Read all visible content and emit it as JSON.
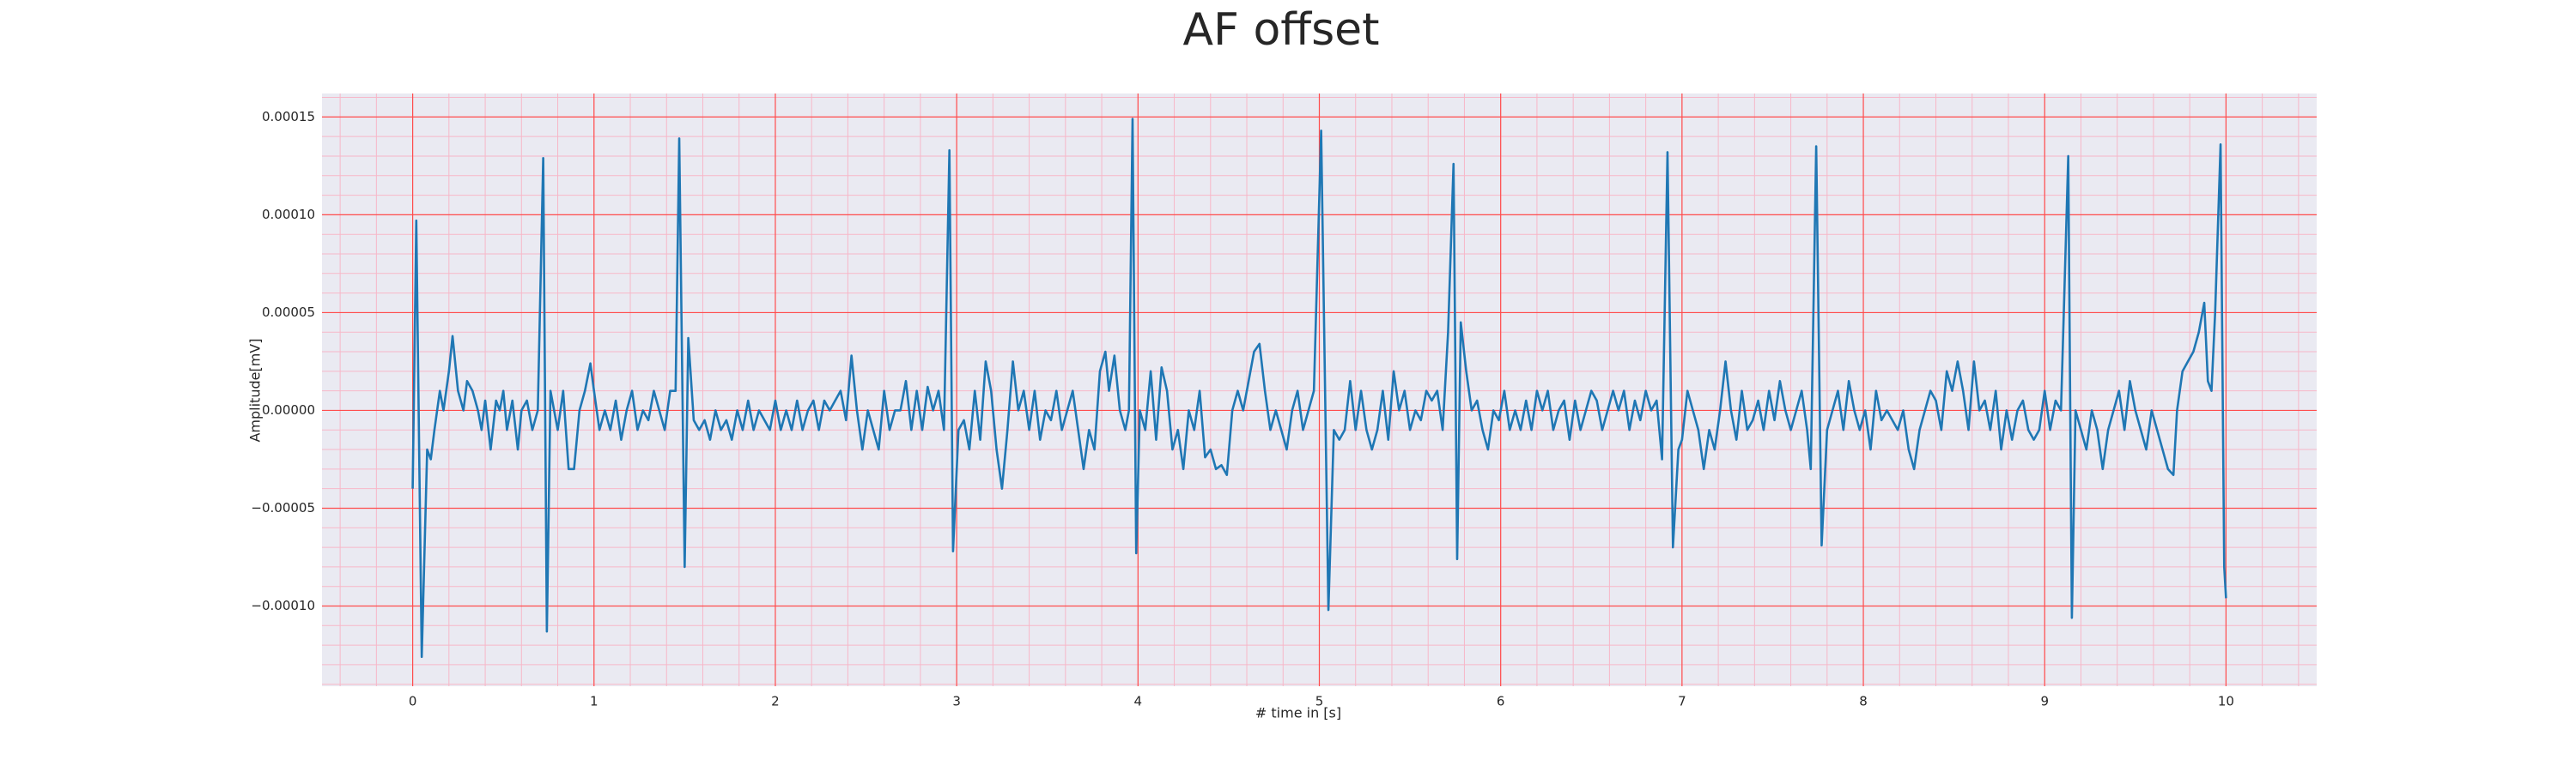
{
  "chart_data": {
    "type": "line",
    "title": "AF offset",
    "xlabel": "# time in [s]",
    "ylabel": "Amplitude[mV]",
    "xlim": [
      -0.5,
      10.5
    ],
    "ylim": [
      -0.000141,
      0.000162
    ],
    "xticks": [
      0,
      1,
      2,
      3,
      4,
      5,
      6,
      7,
      8,
      9,
      10
    ],
    "yticks": [
      {
        "value": -0.0001,
        "label": "−0.00010"
      },
      {
        "value": -5e-05,
        "label": "−0.00005"
      },
      {
        "value": 0,
        "label": "0.00000"
      },
      {
        "value": 5e-05,
        "label": "0.00005"
      },
      {
        "value": 0.0001,
        "label": "0.00010"
      },
      {
        "value": 0.00015,
        "label": "0.00015"
      }
    ],
    "grid": true,
    "minor_grid": true,
    "grid_color": "#ff4d4d",
    "minor_grid_color": "#f7b7c8",
    "background": "#eaeaf2",
    "color": "#1f77b4",
    "x": [
      0.0,
      0.02,
      0.05,
      0.08,
      0.1,
      0.12,
      0.15,
      0.17,
      0.2,
      0.22,
      0.25,
      0.28,
      0.3,
      0.33,
      0.36,
      0.38,
      0.4,
      0.43,
      0.46,
      0.48,
      0.5,
      0.52,
      0.55,
      0.58,
      0.6,
      0.63,
      0.66,
      0.69,
      0.72,
      0.74,
      0.76,
      0.78,
      0.8,
      0.83,
      0.86,
      0.89,
      0.92,
      0.95,
      0.98,
      1.0,
      1.03,
      1.06,
      1.09,
      1.12,
      1.15,
      1.18,
      1.21,
      1.24,
      1.27,
      1.3,
      1.33,
      1.36,
      1.39,
      1.42,
      1.45,
      1.47,
      1.5,
      1.52,
      1.55,
      1.58,
      1.61,
      1.64,
      1.67,
      1.7,
      1.73,
      1.76,
      1.79,
      1.82,
      1.85,
      1.88,
      1.91,
      1.94,
      1.97,
      2.0,
      2.03,
      2.06,
      2.09,
      2.12,
      2.15,
      2.18,
      2.21,
      2.24,
      2.27,
      2.3,
      2.33,
      2.36,
      2.39,
      2.42,
      2.45,
      2.48,
      2.51,
      2.54,
      2.57,
      2.6,
      2.63,
      2.66,
      2.69,
      2.72,
      2.75,
      2.78,
      2.81,
      2.84,
      2.87,
      2.9,
      2.93,
      2.96,
      2.98,
      3.01,
      3.04,
      3.07,
      3.1,
      3.13,
      3.16,
      3.19,
      3.22,
      3.25,
      3.28,
      3.31,
      3.34,
      3.37,
      3.4,
      3.43,
      3.46,
      3.49,
      3.52,
      3.55,
      3.58,
      3.61,
      3.64,
      3.67,
      3.7,
      3.73,
      3.76,
      3.79,
      3.82,
      3.84,
      3.87,
      3.9,
      3.93,
      3.95,
      3.97,
      3.99,
      4.01,
      4.04,
      4.07,
      4.1,
      4.13,
      4.16,
      4.19,
      4.22,
      4.25,
      4.28,
      4.31,
      4.34,
      4.37,
      4.4,
      4.43,
      4.46,
      4.49,
      4.52,
      4.55,
      4.58,
      4.61,
      4.64,
      4.67,
      4.7,
      4.73,
      4.76,
      4.79,
      4.82,
      4.85,
      4.88,
      4.91,
      4.94,
      4.97,
      5.01,
      5.05,
      5.08,
      5.11,
      5.14,
      5.17,
      5.2,
      5.23,
      5.26,
      5.29,
      5.32,
      5.35,
      5.38,
      5.41,
      5.44,
      5.47,
      5.5,
      5.53,
      5.56,
      5.59,
      5.62,
      5.65,
      5.68,
      5.71,
      5.74,
      5.76,
      5.78,
      5.81,
      5.84,
      5.87,
      5.9,
      5.93,
      5.96,
      5.99,
      6.02,
      6.05,
      6.08,
      6.11,
      6.14,
      6.17,
      6.2,
      6.23,
      6.26,
      6.29,
      6.32,
      6.35,
      6.38,
      6.41,
      6.44,
      6.47,
      6.5,
      6.53,
      6.56,
      6.59,
      6.62,
      6.65,
      6.68,
      6.71,
      6.74,
      6.77,
      6.8,
      6.83,
      6.86,
      6.89,
      6.92,
      6.95,
      6.98,
      7.0,
      7.03,
      7.06,
      7.09,
      7.12,
      7.15,
      7.18,
      7.21,
      7.24,
      7.27,
      7.3,
      7.33,
      7.36,
      7.39,
      7.42,
      7.45,
      7.48,
      7.51,
      7.54,
      7.57,
      7.6,
      7.63,
      7.66,
      7.69,
      7.71,
      7.74,
      7.77,
      7.8,
      7.83,
      7.86,
      7.89,
      7.92,
      7.95,
      7.98,
      8.01,
      8.04,
      8.07,
      8.1,
      8.13,
      8.16,
      8.19,
      8.22,
      8.25,
      8.28,
      8.31,
      8.34,
      8.37,
      8.4,
      8.43,
      8.46,
      8.49,
      8.52,
      8.55,
      8.58,
      8.61,
      8.64,
      8.67,
      8.7,
      8.73,
      8.76,
      8.79,
      8.82,
      8.85,
      8.88,
      8.91,
      8.94,
      8.97,
      9.0,
      9.03,
      9.06,
      9.09,
      9.13,
      9.15,
      9.17,
      9.2,
      9.23,
      9.26,
      9.29,
      9.32,
      9.35,
      9.38,
      9.41,
      9.44,
      9.47,
      9.5,
      9.53,
      9.56,
      9.59,
      9.62,
      9.65,
      9.68,
      9.71,
      9.73,
      9.76,
      9.79,
      9.82,
      9.85,
      9.88,
      9.9,
      9.92,
      9.94,
      9.97,
      9.99,
      10.0
    ],
    "values": [
      -4e-05,
      9.7e-05,
      -0.000126,
      -2e-05,
      -2.5e-05,
      -1e-05,
      1e-05,
      0,
      2e-05,
      3.8e-05,
      1e-05,
      0,
      1.5e-05,
      1e-05,
      0,
      -1e-05,
      5e-06,
      -2e-05,
      5e-06,
      0,
      1e-05,
      -1e-05,
      5e-06,
      -2e-05,
      0,
      5e-06,
      -1e-05,
      0,
      0.000129,
      -0.000113,
      1e-05,
      0,
      -1e-05,
      1e-05,
      -3e-05,
      -3e-05,
      0,
      1e-05,
      2.4e-05,
      1e-05,
      -1e-05,
      0,
      -1e-05,
      5e-06,
      -1.5e-05,
      0,
      1e-05,
      -1e-05,
      0,
      -5e-06,
      1e-05,
      0,
      -1e-05,
      1e-05,
      1e-05,
      0.000139,
      -8e-05,
      3.7e-05,
      -5e-06,
      -1e-05,
      -5e-06,
      -1.5e-05,
      0,
      -1e-05,
      -5e-06,
      -1.5e-05,
      0,
      -1e-05,
      5e-06,
      -1e-05,
      0,
      -5e-06,
      -1e-05,
      5e-06,
      -1e-05,
      0,
      -1e-05,
      5e-06,
      -1e-05,
      0,
      5e-06,
      -1e-05,
      5e-06,
      0,
      5e-06,
      1e-05,
      -5e-06,
      2.8e-05,
      0,
      -2e-05,
      0,
      -1e-05,
      -2e-05,
      1e-05,
      -1e-05,
      0,
      0,
      1.5e-05,
      -1e-05,
      1e-05,
      -1e-05,
      1.2e-05,
      0,
      1e-05,
      -1e-05,
      0.000133,
      -7.2e-05,
      -1e-05,
      -5e-06,
      -2e-05,
      1e-05,
      -1.5e-05,
      2.5e-05,
      1e-05,
      -2e-05,
      -4e-05,
      -1e-05,
      2.5e-05,
      0,
      1e-05,
      -1e-05,
      1e-05,
      -1.5e-05,
      0,
      -5e-06,
      1e-05,
      -1e-05,
      0,
      1e-05,
      -1e-05,
      -3e-05,
      -1e-05,
      -2e-05,
      2e-05,
      3e-05,
      1e-05,
      2.8e-05,
      0,
      -1e-05,
      0,
      0.000149,
      -7.3e-05,
      0,
      -1e-05,
      2e-05,
      -1.5e-05,
      2.2e-05,
      1e-05,
      -2e-05,
      -1e-05,
      -3e-05,
      0,
      -1e-05,
      1e-05,
      -2.4e-05,
      -2e-05,
      -3e-05,
      -2.8e-05,
      -3.3e-05,
      0,
      1e-05,
      0,
      1.5e-05,
      3e-05,
      3.4e-05,
      1e-05,
      -1e-05,
      0,
      -1e-05,
      -2e-05,
      0,
      1e-05,
      -1e-05,
      0,
      1e-05,
      0.000143,
      -0.000102,
      -1e-05,
      -1.5e-05,
      -1e-05,
      1.5e-05,
      -1e-05,
      1e-05,
      -1e-05,
      -2e-05,
      -1e-05,
      1e-05,
      -1.5e-05,
      2e-05,
      0,
      1e-05,
      -1e-05,
      0,
      -5e-06,
      1e-05,
      5e-06,
      1e-05,
      -1e-05,
      4e-05,
      0.000126,
      -7.6e-05,
      4.5e-05,
      2e-05,
      0,
      5e-06,
      -1e-05,
      -2e-05,
      0,
      -5e-06,
      1e-05,
      -1e-05,
      0,
      -1e-05,
      5e-06,
      -1e-05,
      1e-05,
      0,
      1e-05,
      -1e-05,
      0,
      5e-06,
      -1.5e-05,
      5e-06,
      -1e-05,
      0,
      1e-05,
      5e-06,
      -1e-05,
      0,
      1e-05,
      0,
      1e-05,
      -1e-05,
      5e-06,
      -5e-06,
      1e-05,
      0,
      5e-06,
      -2.5e-05,
      0.000132,
      -7e-05,
      -2e-05,
      -1.5e-05,
      1e-05,
      0,
      -1e-05,
      -3e-05,
      -1e-05,
      -2e-05,
      0,
      2.5e-05,
      0,
      -1.5e-05,
      1e-05,
      -1e-05,
      -5e-06,
      5e-06,
      -1e-05,
      1e-05,
      -5e-06,
      1.5e-05,
      0,
      -1e-05,
      0,
      1e-05,
      -1e-05,
      -3e-05,
      0.000135,
      -6.9e-05,
      -1e-05,
      0,
      1e-05,
      -1e-05,
      1.5e-05,
      0,
      -1e-05,
      0,
      -2e-05,
      1e-05,
      -5e-06,
      0,
      -5e-06,
      -1e-05,
      0,
      -2e-05,
      -3e-05,
      -1e-05,
      0,
      1e-05,
      5e-06,
      -1e-05,
      2e-05,
      1e-05,
      2.5e-05,
      1e-05,
      -1e-05,
      2.5e-05,
      0,
      5e-06,
      -1e-05,
      1e-05,
      -2e-05,
      0,
      -1.5e-05,
      0,
      5e-06,
      -1e-05,
      -1.5e-05,
      -1e-05,
      1e-05,
      -1e-05,
      5e-06,
      0,
      0.00013,
      -0.000106,
      0,
      -1e-05,
      -2e-05,
      0,
      -1e-05,
      -3e-05,
      -1e-05,
      0,
      1e-05,
      -1e-05,
      1.5e-05,
      0,
      -1e-05,
      -2e-05,
      0,
      -1e-05,
      -2e-05,
      -3e-05,
      -3.3e-05,
      0,
      2e-05,
      2.5e-05,
      3e-05,
      4e-05,
      5.5e-05,
      1.5e-05,
      1e-05,
      5e-05,
      0.000136,
      -8e-05,
      -9.6e-05
    ]
  }
}
